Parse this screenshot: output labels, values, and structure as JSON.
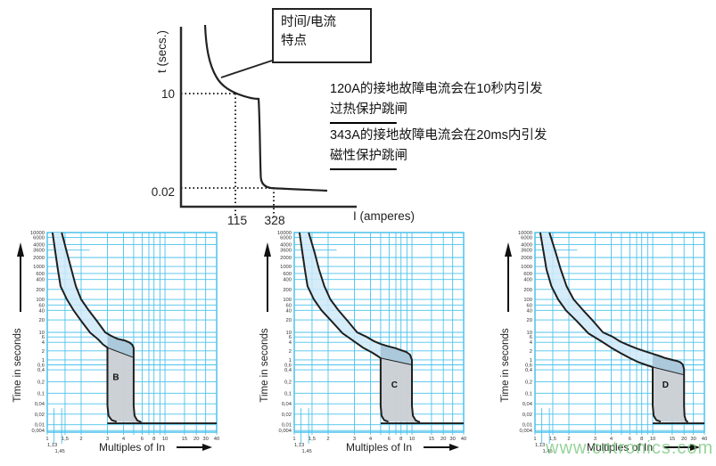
{
  "top_diagram": {
    "callout_line1": "时间/电流",
    "callout_line2": "特点",
    "y_axis_label": "t (secs.)",
    "x_axis_label": "I (amperes)",
    "y_tick_thermal": "10",
    "y_tick_magnetic": "0.02",
    "x_tick_thermal": "115",
    "x_tick_magnetic": "328",
    "guide_points": [
      {
        "current": "115",
        "time": "10"
      },
      {
        "current": "328",
        "time": "0.02"
      }
    ],
    "annotations": [
      {
        "line1": "120A的接地故障电流会在10秒内引发",
        "line2": "过热保护跳闸"
      },
      {
        "line1": "343A的接地故障电流会在20ms内引发",
        "line2": "磁性保护跳闸"
      }
    ]
  },
  "watermark": "www.cntronics.com",
  "colors": {
    "grid": "#4cc2ec",
    "curve": "#1f1f1f",
    "band_fill": "#cfe9f8",
    "overlap_fill": "#a5c3d6",
    "magnetic_fill": "#cbcdd0",
    "tick_text": "#333333",
    "watermark_green": "#7dc882"
  },
  "chart_data": {
    "type": "line",
    "axes_common": {
      "xlabel": "Multiples of In",
      "ylabel": "Time in seconds",
      "xscale": "log",
      "yscale": "log",
      "xlim": [
        1,
        40
      ],
      "ylim": [
        0.004,
        10000
      ],
      "x_ticks": [
        {
          "v": 1,
          "label": "1"
        },
        {
          "v": 1.5,
          "label": "1,5"
        },
        {
          "v": 2,
          "label": "2"
        },
        {
          "v": 3,
          "label": "3"
        },
        {
          "v": 4,
          "label": "4"
        },
        {
          "v": 6,
          "label": "6"
        },
        {
          "v": 8,
          "label": "8"
        },
        {
          "v": 10,
          "label": "10"
        },
        {
          "v": 15,
          "label": "15"
        },
        {
          "v": 20,
          "label": "20"
        },
        {
          "v": 30,
          "label": "30"
        },
        {
          "v": 40,
          "label": "40"
        }
      ],
      "x_subticks": [
        {
          "v": 1.13,
          "label": "1,13"
        },
        {
          "v": 1.45,
          "label": "1,45"
        }
      ],
      "x_grid_only": [
        5,
        7,
        9
      ],
      "y_ticks": [
        {
          "v": 10000,
          "label": "10000"
        },
        {
          "v": 6000,
          "label": "6000"
        },
        {
          "v": 4000,
          "label": "4000"
        },
        {
          "v": 3600,
          "label": "3600"
        },
        {
          "v": 2000,
          "label": "2000"
        },
        {
          "v": 1000,
          "label": "1000"
        },
        {
          "v": 600,
          "label": "600"
        },
        {
          "v": 400,
          "label": "400"
        },
        {
          "v": 200,
          "label": "200"
        },
        {
          "v": 100,
          "label": "100"
        },
        {
          "v": 60,
          "label": "60"
        },
        {
          "v": 40,
          "label": "40"
        },
        {
          "v": 20,
          "label": "20"
        },
        {
          "v": 10,
          "label": "10"
        },
        {
          "v": 6,
          "label": "6"
        },
        {
          "v": 4,
          "label": "4"
        },
        {
          "v": 2,
          "label": "2"
        },
        {
          "v": 1,
          "label": "1"
        },
        {
          "v": 0.6,
          "label": "0,6"
        },
        {
          "v": 0.4,
          "label": "0,4"
        },
        {
          "v": 0.2,
          "label": "0,2"
        },
        {
          "v": 0.1,
          "label": "0,1"
        },
        {
          "v": 0.04,
          "label": "0,04"
        },
        {
          "v": 0.02,
          "label": "0,02"
        },
        {
          "v": 0.01,
          "label": "0,01"
        },
        {
          "v": 0.004,
          "label": "0,004"
        }
      ],
      "y_partial_grid": {
        "v": 3600
      }
    },
    "charts": [
      {
        "label": "B",
        "magnetic_band": [
          3,
          5
        ],
        "label_pos": [
          3.3,
          0.22
        ],
        "divider": [
          [
            3,
            2.6
          ],
          [
            5,
            1.2
          ]
        ],
        "lower": [
          [
            1.1,
            10000
          ],
          [
            1.18,
            3000
          ],
          [
            1.28,
            800
          ],
          [
            1.4,
            250
          ],
          [
            1.55,
            100
          ],
          [
            1.75,
            40
          ],
          [
            2.0,
            19
          ],
          [
            2.3,
            9.5
          ],
          [
            2.6,
            5
          ],
          [
            2.8,
            3.4
          ],
          [
            3,
            2.6
          ]
        ],
        "upper": [
          [
            1.45,
            10000
          ],
          [
            1.55,
            3000
          ],
          [
            1.68,
            800
          ],
          [
            1.82,
            250
          ],
          [
            2.0,
            100
          ],
          [
            2.25,
            40
          ],
          [
            2.55,
            19
          ],
          [
            2.9,
            10
          ],
          [
            3.2,
            6.8
          ],
          [
            3.6,
            5.2
          ],
          [
            4.1,
            4.6
          ],
          [
            4.6,
            3.9
          ],
          [
            4.85,
            3.3
          ],
          [
            5,
            2.6
          ]
        ]
      },
      {
        "label": "C",
        "magnetic_band": [
          5,
          10
        ],
        "label_pos": [
          6.3,
          0.14
        ],
        "divider": [
          [
            5,
            1.15
          ],
          [
            10,
            0.6
          ]
        ],
        "lower": [
          [
            1.1,
            10000
          ],
          [
            1.18,
            3000
          ],
          [
            1.28,
            800
          ],
          [
            1.4,
            250
          ],
          [
            1.55,
            100
          ],
          [
            1.78,
            40
          ],
          [
            2.1,
            19
          ],
          [
            2.5,
            9
          ],
          [
            2.95,
            4.5
          ],
          [
            3.5,
            2.6
          ],
          [
            4.1,
            1.8
          ],
          [
            4.6,
            1.4
          ],
          [
            5,
            1.15
          ]
        ],
        "upper": [
          [
            1.45,
            10000
          ],
          [
            1.57,
            3000
          ],
          [
            1.7,
            800
          ],
          [
            1.87,
            250
          ],
          [
            2.07,
            100
          ],
          [
            2.35,
            40
          ],
          [
            2.7,
            19
          ],
          [
            3.15,
            10
          ],
          [
            3.7,
            6.2
          ],
          [
            4.3,
            4.4
          ],
          [
            5,
            3.5
          ],
          [
            5.9,
            2.9
          ],
          [
            6.9,
            2.5
          ],
          [
            7.9,
            2.15
          ],
          [
            8.9,
            1.85
          ],
          [
            9.6,
            1.5
          ],
          [
            10,
            1.0
          ]
        ]
      },
      {
        "label": "D",
        "magnetic_band": [
          10,
          20
        ],
        "label_pos": [
          12.2,
          0.14
        ],
        "divider": [
          [
            10,
            0.5
          ],
          [
            20,
            0.3
          ]
        ],
        "lower": [
          [
            1.1,
            10000
          ],
          [
            1.2,
            3000
          ],
          [
            1.32,
            800
          ],
          [
            1.48,
            250
          ],
          [
            1.65,
            100
          ],
          [
            1.9,
            40
          ],
          [
            2.25,
            19
          ],
          [
            2.7,
            9
          ],
          [
            3.3,
            4.5
          ],
          [
            4.0,
            2.6
          ],
          [
            4.9,
            1.7
          ],
          [
            6.0,
            1.15
          ],
          [
            7.3,
            0.8
          ],
          [
            8.7,
            0.6
          ],
          [
            10,
            0.5
          ]
        ],
        "upper": [
          [
            1.45,
            10000
          ],
          [
            1.58,
            3000
          ],
          [
            1.73,
            800
          ],
          [
            1.92,
            250
          ],
          [
            2.15,
            100
          ],
          [
            2.5,
            40
          ],
          [
            2.9,
            19
          ],
          [
            3.45,
            10
          ],
          [
            4.1,
            6.2
          ],
          [
            4.9,
            4.2
          ],
          [
            5.9,
            3.1
          ],
          [
            7.1,
            2.4
          ],
          [
            8.5,
            1.95
          ],
          [
            10,
            1.6
          ],
          [
            11.5,
            1.35
          ],
          [
            13,
            1.15
          ],
          [
            15,
            1.0
          ],
          [
            16.8,
            0.9
          ],
          [
            18.3,
            0.78
          ],
          [
            19.4,
            0.62
          ],
          [
            20,
            0.42
          ]
        ]
      }
    ]
  }
}
